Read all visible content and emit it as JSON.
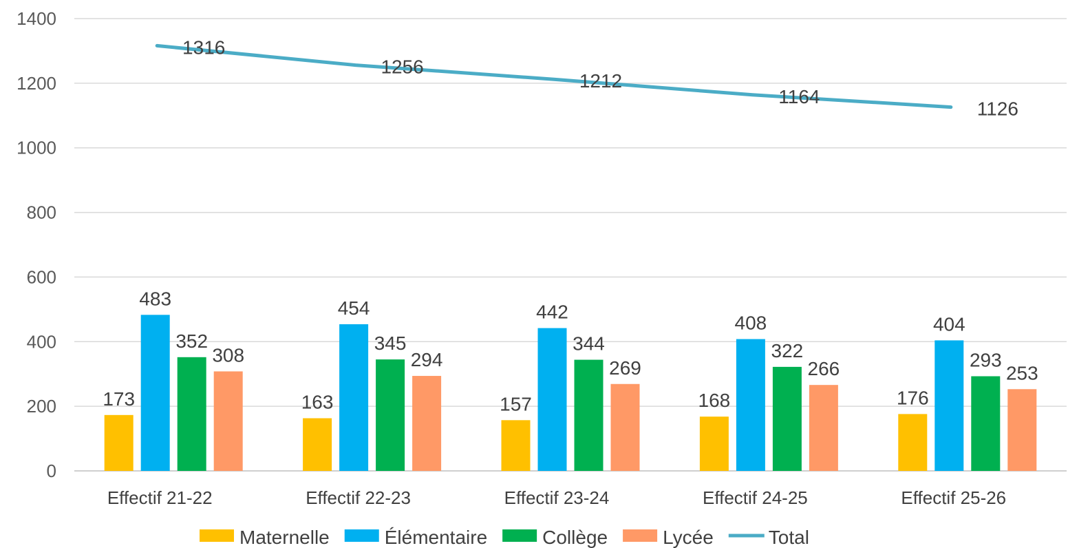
{
  "chart_data": {
    "type": "bar",
    "title": "",
    "xlabel": "",
    "ylabel": "",
    "categories": [
      "Effectif 21-22",
      "Effectif 22-23",
      "Effectif 23-24",
      "Effectif 24-25",
      "Effectif 25-26"
    ],
    "series": [
      {
        "name": "Maternelle",
        "type": "bar",
        "color": "#FFC000",
        "values": [
          173,
          163,
          157,
          168,
          176
        ]
      },
      {
        "name": "Élémentaire",
        "type": "bar",
        "color": "#00B0F0",
        "values": [
          483,
          454,
          442,
          408,
          404
        ]
      },
      {
        "name": "Collège",
        "type": "bar",
        "color": "#00B050",
        "values": [
          352,
          345,
          344,
          322,
          293
        ]
      },
      {
        "name": "Lycée",
        "type": "bar",
        "color": "#FF9966",
        "values": [
          308,
          294,
          269,
          266,
          253
        ]
      },
      {
        "name": "Total",
        "type": "line",
        "color": "#4BACC6",
        "values": [
          1316,
          1256,
          1212,
          1164,
          1126
        ]
      }
    ],
    "ylim": [
      0,
      1400
    ],
    "yticks": [
      0,
      200,
      400,
      600,
      800,
      1000,
      1200,
      1400
    ],
    "grid": true,
    "legend": "bottom"
  }
}
